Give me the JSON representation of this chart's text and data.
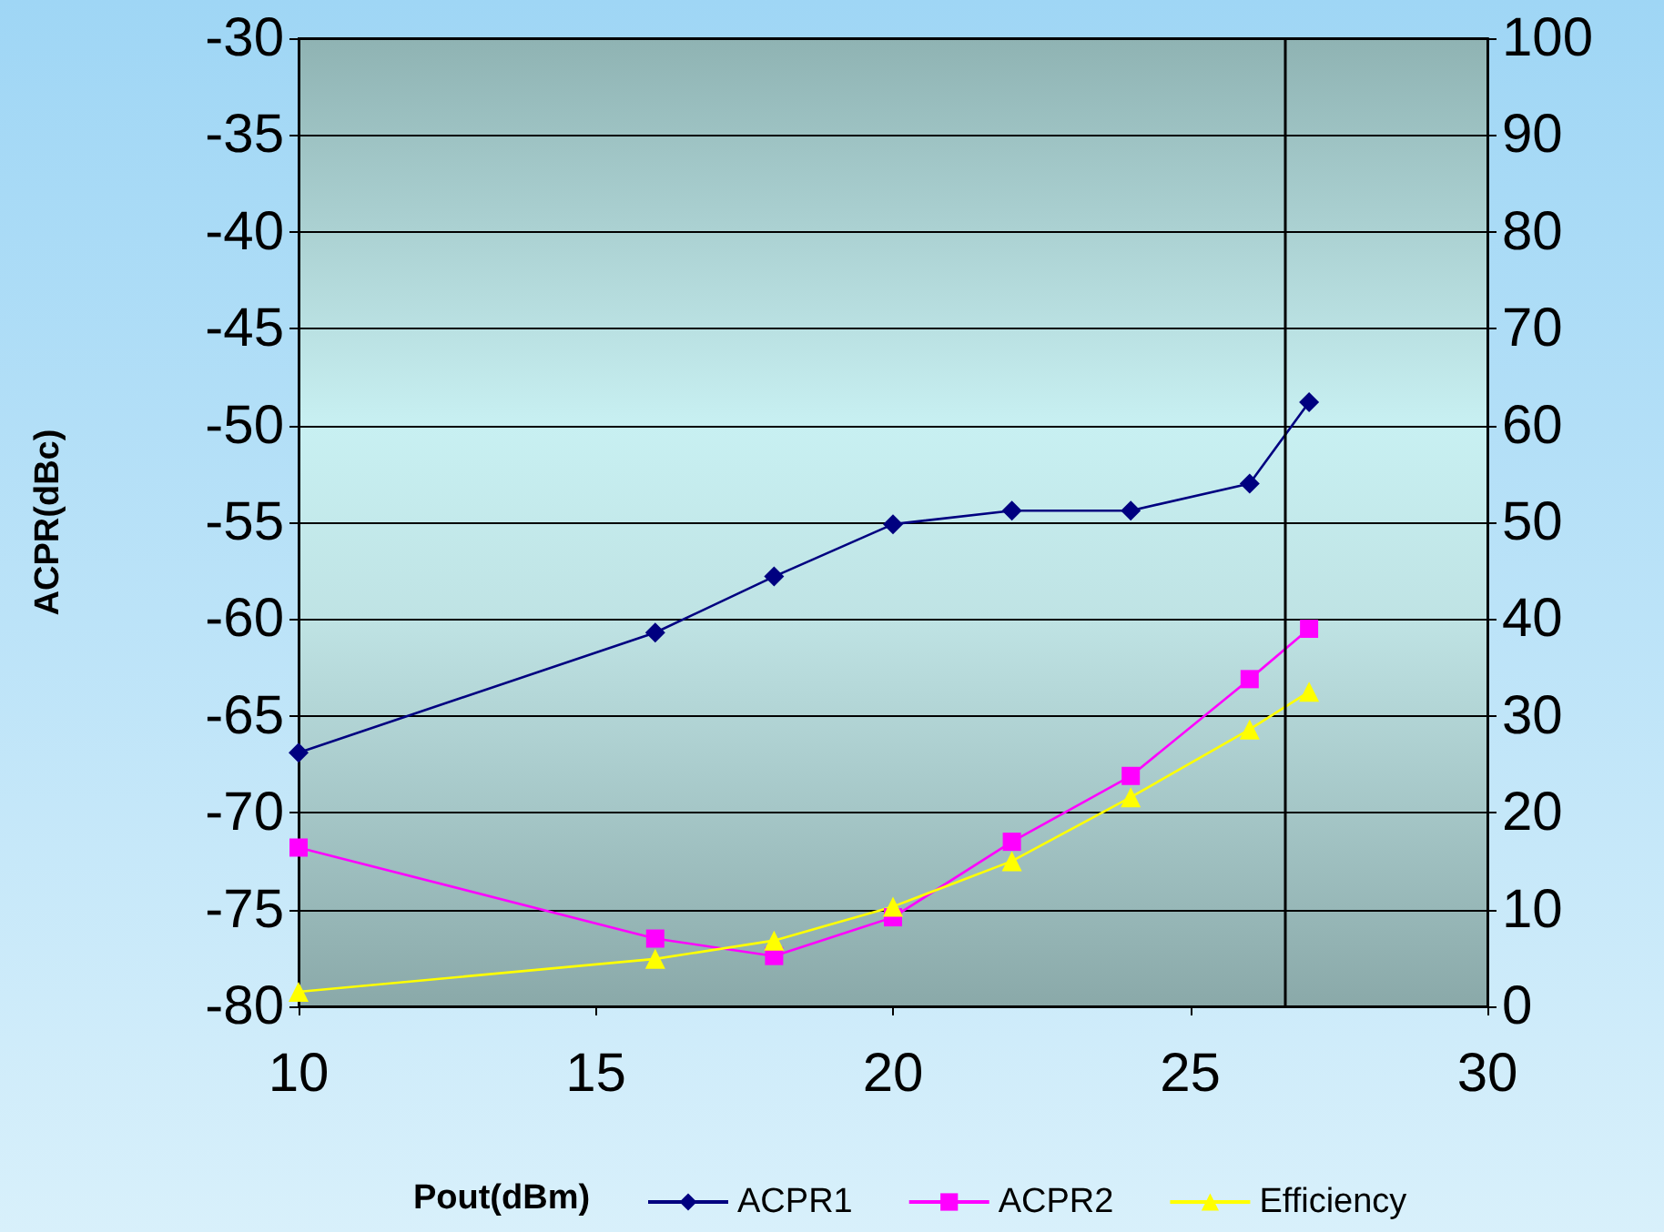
{
  "chart_data": {
    "type": "line",
    "xlabel": "Pout(dBm)",
    "ylabel": "ACPR(dBc)",
    "xlim": [
      10,
      30
    ],
    "xticks": [
      10,
      15,
      20,
      25,
      30
    ],
    "ylim": [
      -80,
      -30
    ],
    "yticks": [
      -80,
      -75,
      -70,
      -65,
      -60,
      -55,
      -50,
      -45,
      -40,
      -35,
      -30
    ],
    "y2lim": [
      0,
      100
    ],
    "y2ticks": [
      0,
      10,
      20,
      30,
      40,
      50,
      60,
      70,
      80,
      90,
      100
    ],
    "grid": "y",
    "legend": "bottom",
    "line_style": "solid",
    "series": [
      {
        "name": "ACPR1",
        "color": "#000080",
        "marker": "diamond",
        "x": [
          10,
          16,
          18,
          20,
          22,
          24,
          26,
          27
        ],
        "values": [
          -66.9,
          -60.7,
          -57.8,
          -55.1,
          -54.4,
          -54.4,
          -53.0,
          -48.8
        ]
      },
      {
        "name": "ACPR2",
        "color": "#ff00ff",
        "marker": "square",
        "x": [
          10,
          16,
          18,
          20,
          22,
          24,
          26,
          27
        ],
        "values": [
          -71.8,
          -76.5,
          -77.4,
          -75.4,
          -71.5,
          -68.1,
          -63.1,
          -60.5
        ]
      },
      {
        "name": "Efficiency",
        "color": "#ffff00",
        "marker": "triangle",
        "axis": "y2",
        "x": [
          10,
          16,
          18,
          20,
          22,
          24,
          26,
          27
        ],
        "values": [
          1.5,
          4.9,
          6.8,
          10.3,
          15.0,
          21.6,
          28.6,
          32.5
        ]
      }
    ],
    "ref_lines": [
      {
        "axis": "x",
        "value": 26.6,
        "color": "#000000"
      }
    ]
  }
}
